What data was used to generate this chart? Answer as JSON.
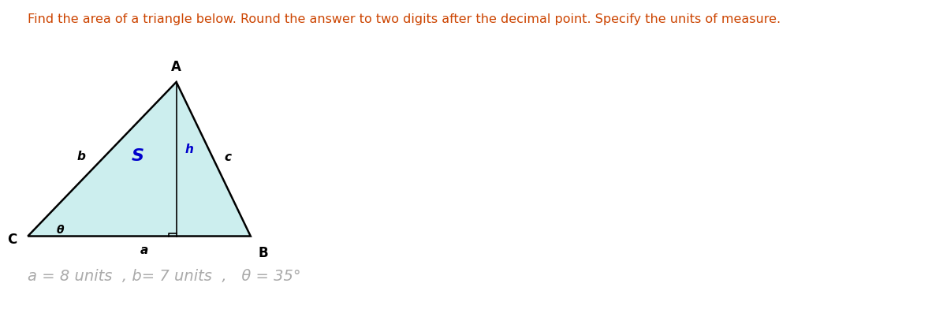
{
  "title": "Find the area of a triangle below. Round the answer to two digits after the decimal point. Specify the units of measure.",
  "title_fontsize": 11.5,
  "title_color": "#cc4400",
  "triangle_fill": "#cceeee",
  "triangle_edge_color": "#000000",
  "triangle_edge_width": 1.8,
  "vertex_C": [
    0.03,
    0.28
  ],
  "vertex_B": [
    0.27,
    0.28
  ],
  "vertex_A": [
    0.19,
    0.75
  ],
  "label_A": "A",
  "label_B": "B",
  "label_C": "C",
  "label_a": "a",
  "label_b": "b",
  "label_c": "c",
  "label_h": "h",
  "label_S": "S",
  "label_theta": "θ",
  "side_label_color": "#000000",
  "h_label_color": "#0000cc",
  "S_label_color": "#0000cc",
  "formula_text": "a = 8 units  , b= 7 units  ,   θ = 35°",
  "formula_fontsize": 14,
  "formula_color": "#aaaaaa",
  "bg_color": "#ffffff",
  "fig_width": 11.77,
  "fig_height": 4.16,
  "fig_dpi": 100
}
